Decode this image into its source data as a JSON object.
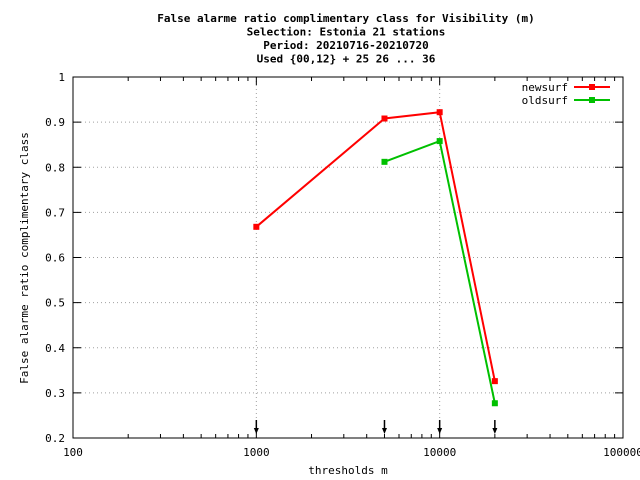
{
  "chart_data": {
    "type": "line",
    "title_lines": [
      "False alarme ratio complimentary class  for Visibility (m)",
      "Selection: Estonia     21 stations",
      "Period: 20210716-20210720",
      "Used {00,12} + 25 26 ... 36"
    ],
    "xlabel": "thresholds m",
    "ylabel": "False alarme ratio complimentary class",
    "x_scale": "log",
    "xlim": [
      100,
      100000
    ],
    "ylim": [
      0.2,
      1
    ],
    "x_ticks": [
      100,
      1000,
      10000,
      100000
    ],
    "x_tick_labels": [
      "100",
      "1000",
      "10000",
      "100000"
    ],
    "y_ticks": [
      0.2,
      0.3,
      0.4,
      0.5,
      0.6,
      0.7,
      0.8,
      0.9,
      1
    ],
    "y_tick_labels": [
      "0.2",
      "0.3",
      "0.4",
      "0.5",
      "0.6",
      "0.7",
      "0.8",
      "0.9",
      "1"
    ],
    "grid": true,
    "legend_position": "top-right",
    "series": [
      {
        "name": "newsurf",
        "color": "#ff0000",
        "x": [
          1000,
          5000,
          10000,
          20000
        ],
        "y": [
          0.668,
          0.908,
          0.922,
          0.326
        ]
      },
      {
        "name": "oldsurf",
        "color": "#00c000",
        "x": [
          5000,
          10000,
          20000
        ],
        "y": [
          0.812,
          0.858,
          0.277
        ]
      }
    ],
    "threshold_markers": [
      1000,
      5000,
      10000,
      20000
    ]
  }
}
